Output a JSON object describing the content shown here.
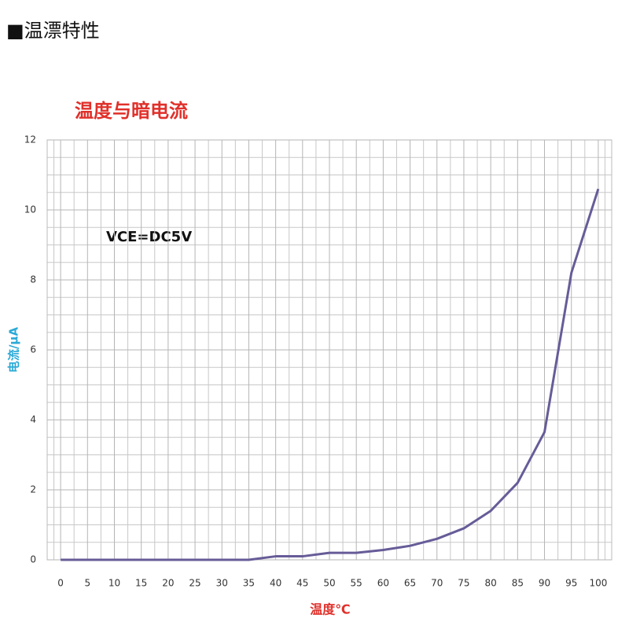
{
  "header": "■温漂特性",
  "chart_data": {
    "type": "line",
    "title": "温度与暗电流",
    "x_label": "温度℃",
    "y_label": "电流/μA",
    "annotation": "VCE=DC5V",
    "x": [
      0,
      5,
      10,
      15,
      20,
      25,
      30,
      35,
      40,
      45,
      50,
      55,
      60,
      65,
      70,
      75,
      80,
      85,
      90,
      95,
      100
    ],
    "series": [
      {
        "color": "#675c98",
        "values": [
          0,
          0,
          0,
          0,
          0,
          0,
          0,
          0,
          0.1,
          0.1,
          0.2,
          0.2,
          0.28,
          0.4,
          0.6,
          0.9,
          1.4,
          2.2,
          3.65,
          8.2,
          10.6
        ]
      }
    ],
    "xlim": [
      -2.5,
      102.5
    ],
    "xticks": [
      0,
      5,
      10,
      15,
      20,
      25,
      30,
      35,
      40,
      45,
      50,
      55,
      60,
      65,
      70,
      75,
      80,
      85,
      90,
      95,
      100
    ],
    "ylim": [
      0,
      12
    ],
    "yticks": [
      0,
      2,
      4,
      6,
      8,
      10,
      12
    ],
    "grid": true
  }
}
